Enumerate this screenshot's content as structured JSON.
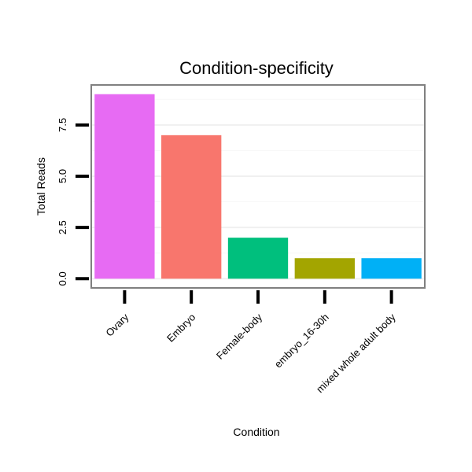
{
  "chart_data": {
    "type": "bar",
    "title": "Condition-specificity",
    "xlabel": "Condition",
    "ylabel": "Total Reads",
    "categories": [
      "Ovary",
      "Embryo",
      "Female-body",
      "embryo_16-30h",
      "mixed whole adult body"
    ],
    "values": [
      9,
      7,
      2,
      1,
      1
    ],
    "colors": [
      "#E76BF3",
      "#F8766D",
      "#00BF7D",
      "#A3A500",
      "#00B0F6"
    ],
    "yticks": [
      0,
      2.5,
      5,
      7.5
    ],
    "ytick_labels": [
      "0.0",
      "2.5",
      "5.0",
      "7.5"
    ],
    "ylim": [
      -0.45,
      9.45
    ],
    "grid": true,
    "legend": "none"
  }
}
